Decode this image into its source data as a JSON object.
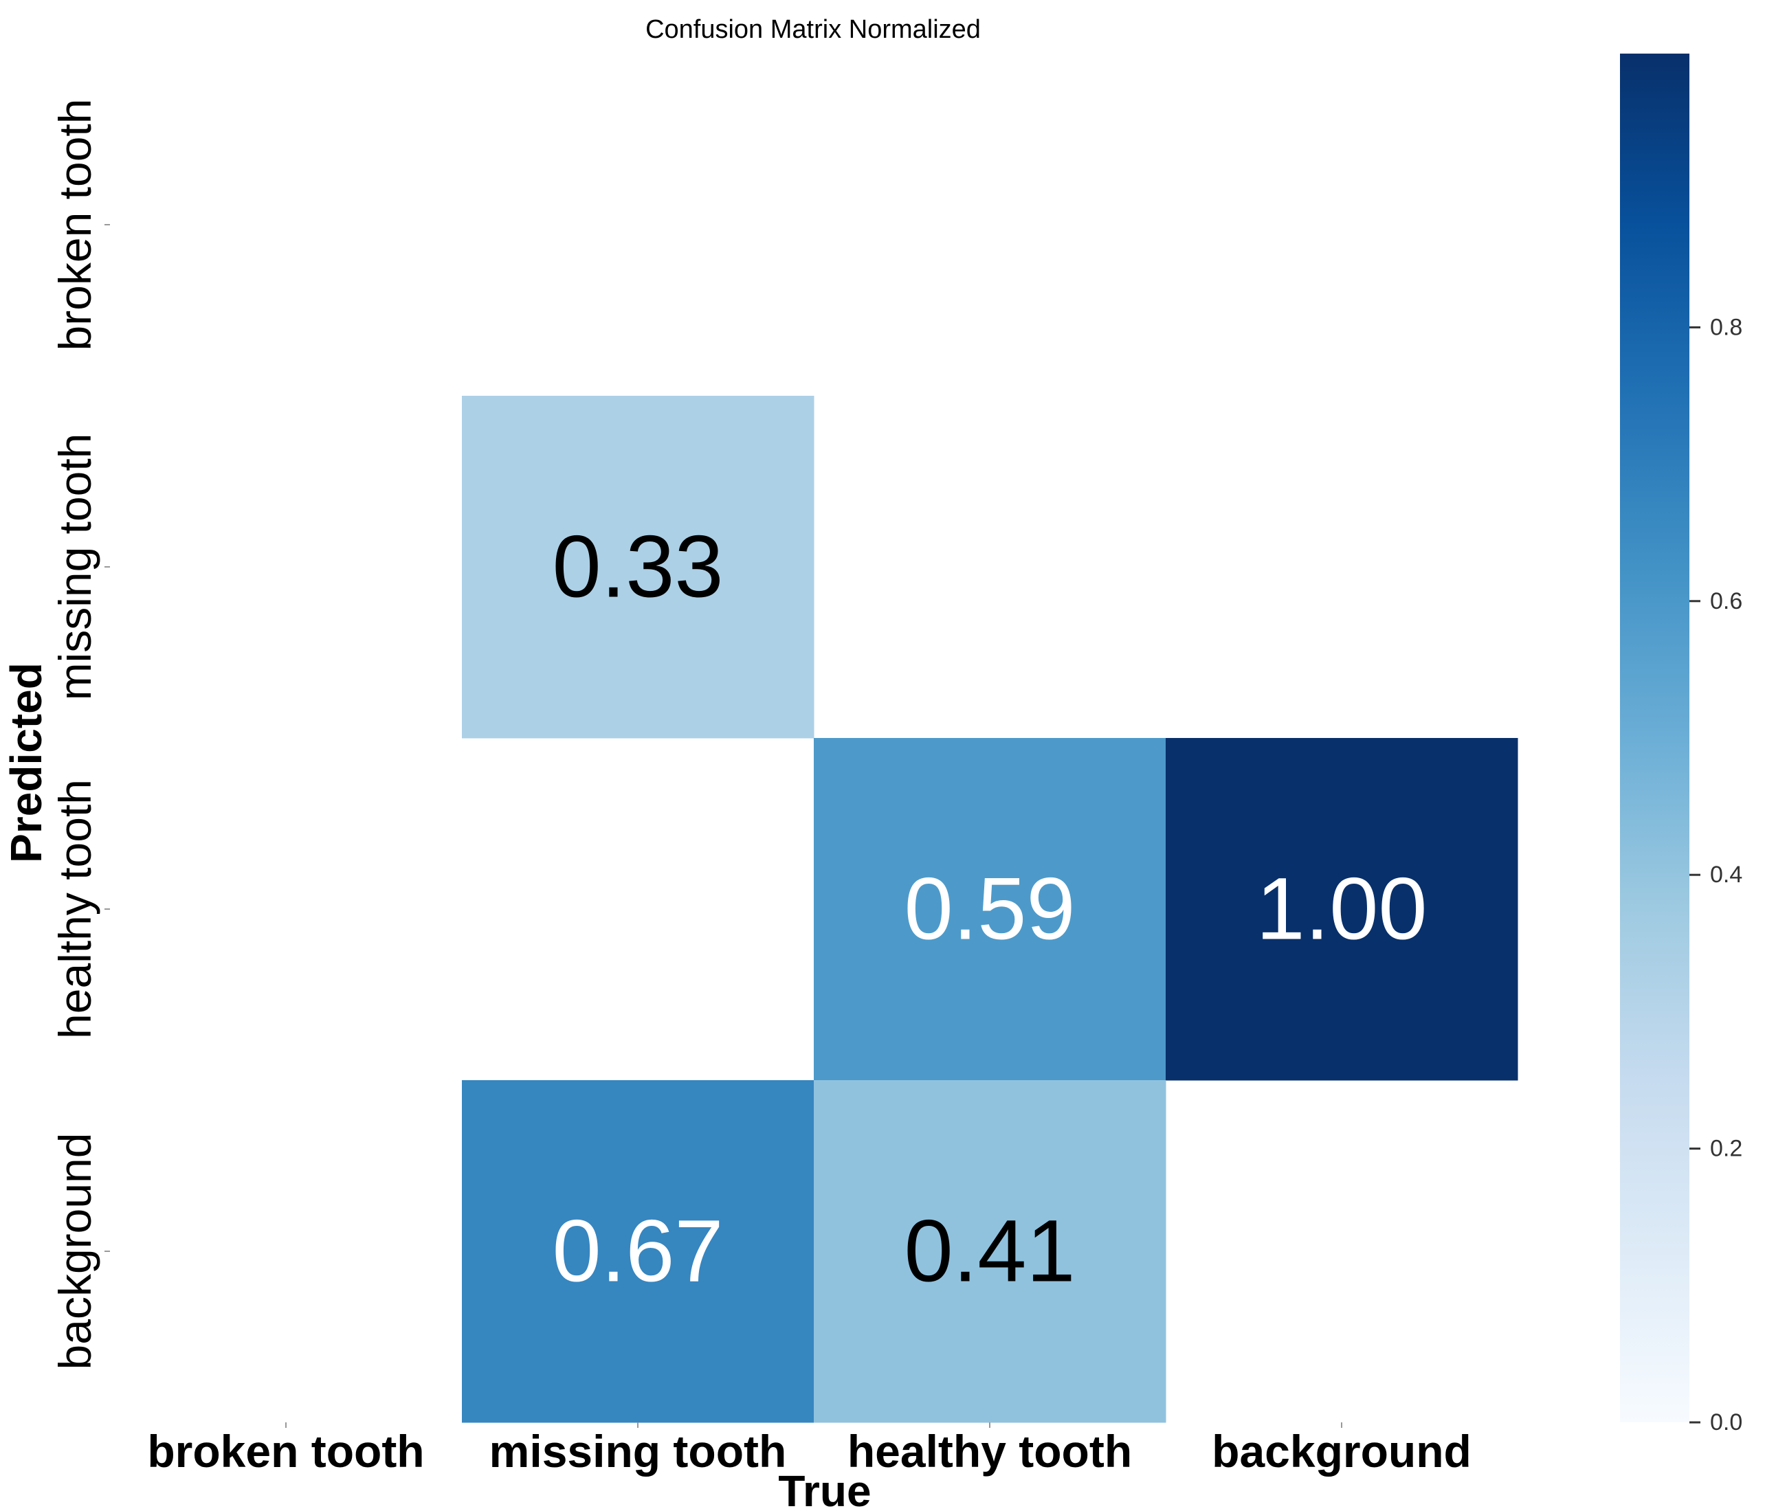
{
  "chart_data": {
    "type": "heatmap",
    "title": "Confusion Matrix Normalized",
    "xlabel": "True",
    "ylabel": "Predicted",
    "x_categories": [
      "broken tooth",
      "missing tooth",
      "healthy tooth",
      "background"
    ],
    "y_categories": [
      "broken tooth",
      "missing tooth",
      "healthy tooth",
      "background"
    ],
    "cells": [
      {
        "row": 1,
        "col": 1,
        "value": 0.33,
        "label": "0.33"
      },
      {
        "row": 2,
        "col": 2,
        "value": 0.59,
        "label": "0.59"
      },
      {
        "row": 2,
        "col": 3,
        "value": 1.0,
        "label": "1.00"
      },
      {
        "row": 3,
        "col": 1,
        "value": 0.67,
        "label": "0.67"
      },
      {
        "row": 3,
        "col": 2,
        "value": 0.41,
        "label": "0.41"
      }
    ],
    "colorbar": {
      "range": [
        0,
        1
      ],
      "ticks": [
        0.0,
        0.2,
        0.4,
        0.6,
        0.8
      ],
      "tick_labels": [
        "0.0",
        "0.2",
        "0.4",
        "0.6",
        "0.8"
      ]
    },
    "colormap": "Blues",
    "color_stops": [
      "#f7fbff",
      "#deebf7",
      "#c6dbef",
      "#9ecae1",
      "#6baed6",
      "#4292c6",
      "#2171b5",
      "#08519c",
      "#08306b"
    ],
    "background": "#ffffff"
  }
}
